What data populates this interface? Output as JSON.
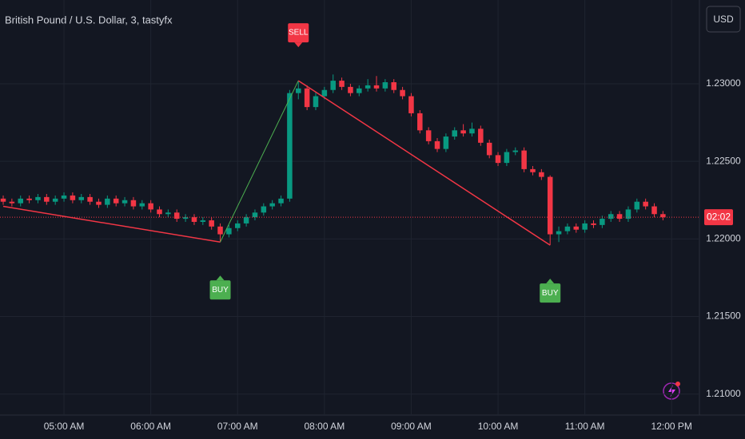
{
  "header": {
    "title": "British Pound / U.S. Dollar, 3, tastyfx",
    "currency": "USD"
  },
  "chart_data": {
    "type": "candlestick",
    "x": [
      0,
      1,
      2,
      3,
      4,
      5,
      6,
      7,
      8,
      9,
      10,
      11,
      12,
      13,
      14,
      15,
      16,
      17,
      18,
      19,
      20,
      21,
      22,
      23,
      24,
      25,
      26,
      27,
      28,
      29,
      30,
      31,
      32,
      33,
      34,
      35,
      36,
      37,
      38,
      39,
      40,
      41,
      42,
      43,
      44,
      45,
      46,
      47,
      48,
      49,
      50,
      51,
      52,
      53,
      54,
      55,
      56,
      57,
      58,
      59,
      60,
      61,
      62,
      63,
      64,
      65,
      66,
      67,
      68,
      69,
      70,
      71,
      72,
      73,
      74,
      75,
      76
    ],
    "open": [
      1.2226,
      1.2224,
      1.2223,
      1.2226,
      1.2225,
      1.2227,
      1.2224,
      1.2226,
      1.2228,
      1.2225,
      1.2227,
      1.2224,
      1.2222,
      1.2226,
      1.2223,
      1.2225,
      1.2221,
      1.2223,
      1.2219,
      1.2216,
      1.2217,
      1.2213,
      1.2214,
      1.2211,
      1.2212,
      1.2208,
      1.2203,
      1.2207,
      1.221,
      1.2214,
      1.2217,
      1.2221,
      1.2223,
      1.2226,
      1.2294,
      1.2297,
      1.2285,
      1.2292,
      1.2296,
      1.2302,
      1.2298,
      1.2294,
      1.2297,
      1.2299,
      1.2297,
      1.2301,
      1.2296,
      1.2292,
      1.2281,
      1.227,
      1.2263,
      1.2258,
      1.2266,
      1.227,
      1.2268,
      1.2271,
      1.2262,
      1.2254,
      1.2249,
      1.2256,
      1.2257,
      1.2245,
      1.2243,
      1.224,
      1.2203,
      1.2205,
      1.2208,
      1.2206,
      1.221,
      1.2209,
      1.2213,
      1.2216,
      1.2213,
      1.2219,
      1.2224,
      1.2221,
      1.2216
    ],
    "high": [
      1.2228,
      1.2226,
      1.2228,
      1.2228,
      1.2229,
      1.2229,
      1.2228,
      1.223,
      1.223,
      1.2229,
      1.2229,
      1.2226,
      1.2228,
      1.2228,
      1.2227,
      1.2227,
      1.2225,
      1.2225,
      1.2221,
      1.2219,
      1.2219,
      1.2216,
      1.2216,
      1.2214,
      1.2214,
      1.221,
      1.2209,
      1.2212,
      1.2216,
      1.2219,
      1.2223,
      1.2225,
      1.2228,
      1.2296,
      1.2302,
      1.2299,
      1.2295,
      1.2298,
      1.2306,
      1.2304,
      1.23,
      1.2299,
      1.2303,
      1.2305,
      1.2303,
      1.2303,
      1.2298,
      1.2294,
      1.2283,
      1.2272,
      1.2265,
      1.2268,
      1.2272,
      1.2274,
      1.2275,
      1.2273,
      1.2264,
      1.2256,
      1.2258,
      1.2259,
      1.2259,
      1.2247,
      1.2245,
      1.2241,
      1.2208,
      1.221,
      1.221,
      1.2212,
      1.2212,
      1.2215,
      1.2218,
      1.2218,
      1.2221,
      1.2226,
      1.2226,
      1.2223,
      1.2218
    ],
    "low": [
      1.2222,
      1.2221,
      1.2221,
      1.2223,
      1.2223,
      1.2222,
      1.2222,
      1.2224,
      1.2223,
      1.2223,
      1.2222,
      1.222,
      1.222,
      1.2221,
      1.2221,
      1.2219,
      1.2219,
      1.2217,
      1.2214,
      1.2214,
      1.2211,
      1.2211,
      1.2209,
      1.2209,
      1.2206,
      1.2198,
      1.2201,
      1.2205,
      1.2208,
      1.2212,
      1.2215,
      1.2219,
      1.2221,
      1.2224,
      1.229,
      1.2283,
      1.2283,
      1.229,
      1.2294,
      1.2296,
      1.2292,
      1.2292,
      1.2295,
      1.2295,
      1.2295,
      1.2294,
      1.229,
      1.2279,
      1.2268,
      1.2261,
      1.2256,
      1.2256,
      1.2264,
      1.2266,
      1.2266,
      1.226,
      1.2252,
      1.2247,
      1.2247,
      1.2254,
      1.2243,
      1.2241,
      1.2238,
      1.2196,
      1.2198,
      1.2203,
      1.2204,
      1.2204,
      1.2207,
      1.2207,
      1.2211,
      1.2211,
      1.2211,
      1.2217,
      1.2219,
      1.2214,
      1.2212
    ],
    "close": [
      1.2224,
      1.2223,
      1.2226,
      1.2225,
      1.2227,
      1.2224,
      1.2226,
      1.2228,
      1.2225,
      1.2227,
      1.2224,
      1.2222,
      1.2226,
      1.2223,
      1.2225,
      1.2221,
      1.2223,
      1.2219,
      1.2216,
      1.2217,
      1.2213,
      1.2214,
      1.2211,
      1.2212,
      1.2208,
      1.2203,
      1.2207,
      1.221,
      1.2214,
      1.2217,
      1.2221,
      1.2223,
      1.2226,
      1.2294,
      1.2297,
      1.2285,
      1.2292,
      1.2296,
      1.2302,
      1.2298,
      1.2294,
      1.2297,
      1.2299,
      1.2297,
      1.2301,
      1.2296,
      1.2292,
      1.2281,
      1.227,
      1.2263,
      1.2258,
      1.2266,
      1.227,
      1.2268,
      1.2271,
      1.2262,
      1.2254,
      1.2249,
      1.2256,
      1.2257,
      1.2245,
      1.2243,
      1.224,
      1.2203,
      1.2205,
      1.2208,
      1.2206,
      1.221,
      1.2209,
      1.2213,
      1.2216,
      1.2213,
      1.2219,
      1.2224,
      1.2221,
      1.2216,
      1.2214
    ],
    "up_color": "#089981",
    "down_color": "#f23645",
    "zigzag": {
      "x": [
        0,
        25,
        34,
        63
      ],
      "values": [
        1.2221,
        1.2198,
        1.2302,
        1.2196
      ],
      "up_color": "#4caf50",
      "down_color": "#f23645"
    },
    "signals": [
      {
        "label": "BUY",
        "x": 25,
        "color": "#4caf50"
      },
      {
        "label": "SELL",
        "x": 34,
        "color": "#f23645"
      },
      {
        "label": "BUY",
        "x": 63,
        "color": "#4caf50"
      }
    ],
    "countdown": "02:02",
    "xlim": [
      -0.37,
      80.2
    ],
    "xticks": [
      {
        "value": 7,
        "label": "05:00 AM"
      },
      {
        "value": 17,
        "label": "06:00 AM"
      },
      {
        "value": 27,
        "label": "07:00 AM"
      },
      {
        "value": 37,
        "label": "08:00 AM"
      },
      {
        "value": 47,
        "label": "09:00 AM"
      },
      {
        "value": 57,
        "label": "10:00 AM"
      },
      {
        "value": 67,
        "label": "11:00 AM"
      },
      {
        "value": 77,
        "label": "12:00 PM"
      }
    ],
    "ylim": [
      1.20865,
      1.2354
    ],
    "yticks": [
      {
        "value": 1.21,
        "label": "1.21000"
      },
      {
        "value": 1.215,
        "label": "1.21500"
      },
      {
        "value": 1.22,
        "label": "1.22000"
      },
      {
        "value": 1.225,
        "label": "1.22500"
      },
      {
        "value": 1.23,
        "label": "1.23000"
      }
    ],
    "grid": true
  }
}
